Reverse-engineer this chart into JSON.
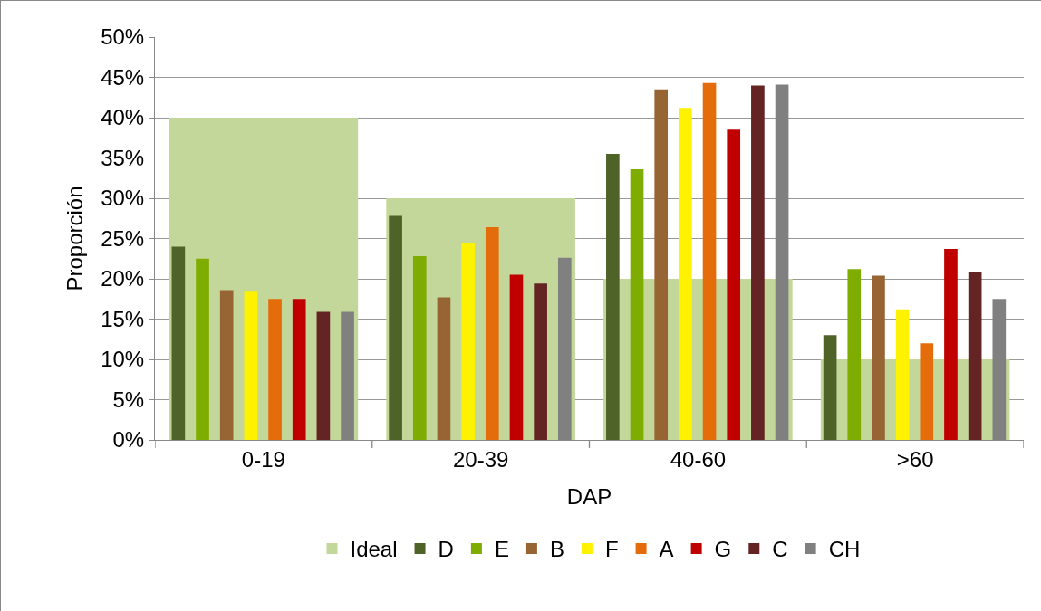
{
  "chart_data": {
    "type": "bar",
    "xlabel": "DAP",
    "ylabel": "Proporción",
    "categories": [
      "0-19",
      "20-39",
      "40-60",
      ">60"
    ],
    "series": [
      {
        "name": "Ideal",
        "color": "#c4d79b",
        "values": [
          40,
          30,
          20,
          10
        ]
      },
      {
        "name": "D",
        "color": "#4f6228",
        "values": [
          24,
          27.8,
          35.5,
          13
        ]
      },
      {
        "name": "E",
        "color": "#7fac00",
        "values": [
          22.5,
          22.8,
          33.6,
          21.2
        ]
      },
      {
        "name": "B",
        "color": "#976433",
        "values": [
          18.6,
          17.7,
          43.5,
          20.4
        ]
      },
      {
        "name": "F",
        "color": "#fff200",
        "values": [
          18.4,
          24.4,
          41.2,
          16.2
        ]
      },
      {
        "name": "A",
        "color": "#e46c0a",
        "values": [
          17.5,
          26.4,
          44.3,
          12
        ]
      },
      {
        "name": "G",
        "color": "#c00000",
        "values": [
          17.5,
          20.5,
          38.5,
          23.7
        ]
      },
      {
        "name": "C",
        "color": "#632423",
        "values": [
          15.9,
          19.4,
          44,
          20.9
        ]
      },
      {
        "name": "CH",
        "color": "#808080",
        "values": [
          15.9,
          22.6,
          44.1,
          17.5
        ]
      }
    ],
    "ylim": [
      0,
      50
    ],
    "yticks": [
      {
        "value": 0,
        "label": "0%"
      },
      {
        "value": 5,
        "label": "5%"
      },
      {
        "value": 10,
        "label": "10%"
      },
      {
        "value": 15,
        "label": "15%"
      },
      {
        "value": 20,
        "label": "20%"
      },
      {
        "value": 25,
        "label": "25%"
      },
      {
        "value": 30,
        "label": "30%"
      },
      {
        "value": 35,
        "label": "35%"
      },
      {
        "value": 40,
        "label": "40%"
      },
      {
        "value": 45,
        "label": "45%"
      },
      {
        "value": 50,
        "label": "50%"
      }
    ],
    "grid": "y",
    "legend": "bottom"
  }
}
